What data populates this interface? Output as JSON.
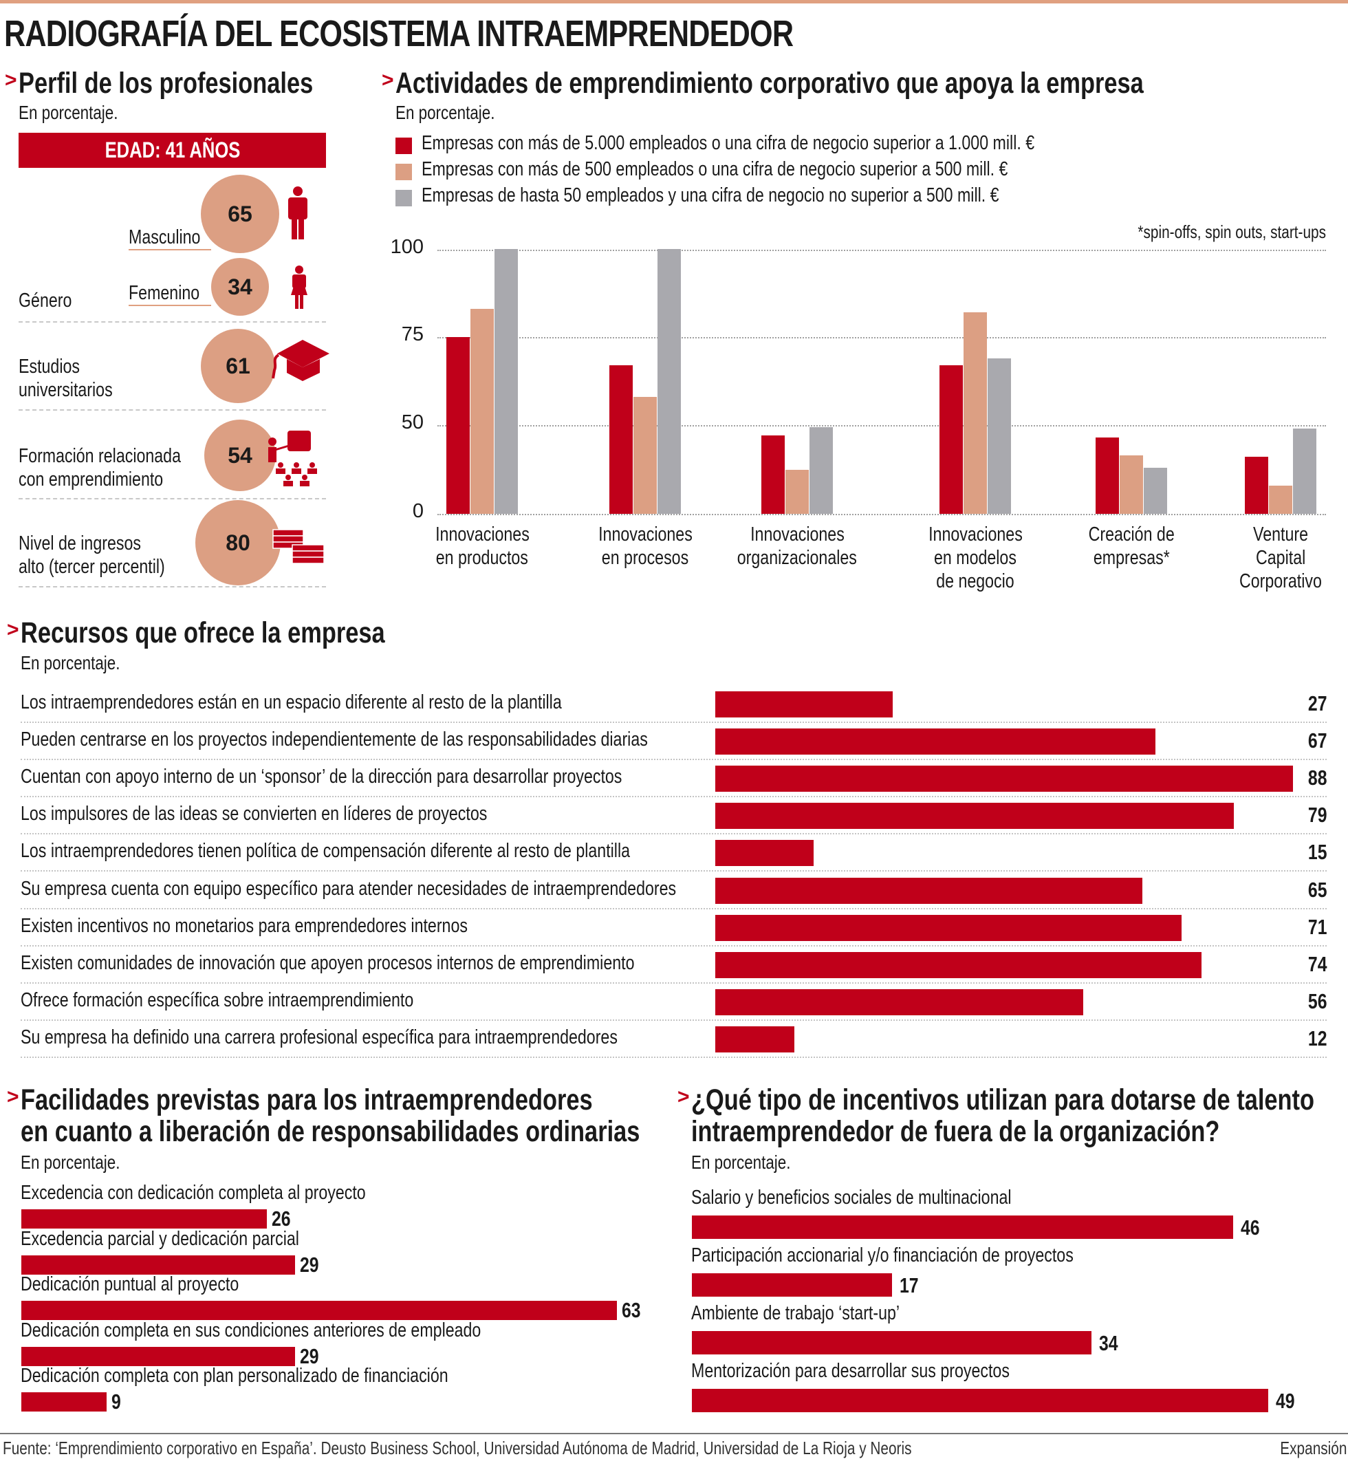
{
  "title": "RADIOGRAFÍA DEL ECOSISTEMA INTRAEMPRENDEDOR",
  "colors": {
    "red": "#c0001a",
    "peach": "#dc9f83",
    "gray": "#a9a9ae"
  },
  "perfil": {
    "heading": "Perfil de los profesionales",
    "subtitle": "En porcentaje.",
    "edad": "EDAD: 41 AÑOS",
    "genero_label": "Género",
    "masculino_label": "Masculino",
    "masculino_value": "65",
    "femenino_label": "Femenino",
    "femenino_value": "34",
    "estudios_label_1": "Estudios",
    "estudios_label_2": "universitarios",
    "estudios_value": "61",
    "formacion_label_1": "Formación relacionada",
    "formacion_label_2": "con emprendimiento",
    "formacion_value": "54",
    "ingresos_label_1": "Nivel de ingresos",
    "ingresos_label_2": "alto (tercer percentil)",
    "ingresos_value": "80",
    "icons": [
      "man-icon",
      "woman-icon",
      "graduation-cap-icon",
      "teacher-classroom-icon",
      "money-stacks-icon"
    ]
  },
  "chart_data": [
    {
      "type": "bar",
      "title": "Actividades de emprendimiento corporativo que apoya la empresa",
      "subtitle": "En porcentaje.",
      "footnote": "*spin-offs, spin outs, start-ups",
      "yticks": [
        "100",
        "75",
        "50",
        "0"
      ],
      "ylim": [
        0,
        100
      ],
      "grid": true,
      "legend": "top",
      "categories": [
        [
          "Innovaciones",
          "en productos"
        ],
        [
          "Innovaciones",
          "en procesos"
        ],
        [
          "Innovaciones",
          "organizacionales"
        ],
        [
          "Innovaciones",
          "en modelos",
          "de negocio"
        ],
        [
          "Creación de",
          "empresas*"
        ],
        [
          "Venture",
          "Capital",
          "Corporativo"
        ]
      ],
      "series": [
        {
          "name": "Empresas con más de 5.000 empleados o una cifra de negocio superior a 1.000 mill. €",
          "color": "#c0001a",
          "values": [
            75,
            67,
            44,
            67,
            43,
            32
          ]
        },
        {
          "name": "Empresas con más de 500 empleados o una cifra de negocio superior a 500 mill. €",
          "color": "#dc9f83",
          "values": [
            83,
            58,
            25,
            82,
            33,
            16
          ]
        },
        {
          "name": "Empresas de hasta 50 empleados y una cifra de negocio no superior a 500 mill. €",
          "color": "#a9a9ae",
          "values": [
            100,
            100,
            49,
            69,
            26,
            48
          ]
        }
      ]
    },
    {
      "type": "bar",
      "title": "Recursos que ofrece la empresa",
      "subtitle": "En porcentaje.",
      "categories": [
        "Los intraemprendedores están en un espacio diferente al resto de la plantilla",
        "Pueden centrarse en los proyectos independientemente de las responsabilidades diarias",
        "Cuentan con apoyo interno de un ‘sponsor’ de la dirección para desarrollar proyectos",
        "Los impulsores de las ideas se convierten en líderes de proyectos",
        "Los intraemprendedores tienen política de compensación diferente al resto de plantilla",
        "Su empresa cuenta con equipo específico para atender necesidades de intraemprendedores",
        "Existen incentivos no monetarios para emprendedores internos",
        "Existen comunidades de innovación que apoyen procesos internos de emprendimiento",
        "Ofrece formación específica sobre intraemprendimiento",
        "Su empresa ha definido una carrera profesional específica para intraemprendedores"
      ],
      "values": [
        27,
        67,
        88,
        79,
        15,
        65,
        71,
        74,
        56,
        12
      ]
    },
    {
      "type": "bar",
      "title": [
        "Facilidades previstas para los intraemprendedores",
        "en cuanto a liberación de responsabilidades ordinarias"
      ],
      "subtitle": "En porcentaje.",
      "categories": [
        "Excedencia con dedicación completa al proyecto",
        "Excedencia parcial y dedicación parcial",
        "Dedicación puntual al proyecto",
        "Dedicación completa en sus condiciones anteriores de empleado",
        "Dedicación completa con plan personalizado de financiación"
      ],
      "values": [
        26,
        29,
        63,
        29,
        9
      ]
    },
    {
      "type": "bar",
      "title": [
        "¿Qué tipo de incentivos utilizan para dotarse de talento",
        "intraemprendedor de fuera de la organización?"
      ],
      "subtitle": "En porcentaje.",
      "categories": [
        "Salario y beneficios sociales de multinacional",
        "Participación accionarial y/o financiación de proyectos",
        "Ambiente de trabajo ‘start-up’",
        "Mentorización para desarrollar sus proyectos"
      ],
      "values": [
        46,
        17,
        34,
        49
      ]
    }
  ],
  "footer": {
    "source": "Fuente: ‘Emprendimiento corporativo en España’. Deusto Business School, Universidad Autónoma de Madrid, Universidad de La Rioja y Neoris",
    "brand": "Expansión"
  }
}
